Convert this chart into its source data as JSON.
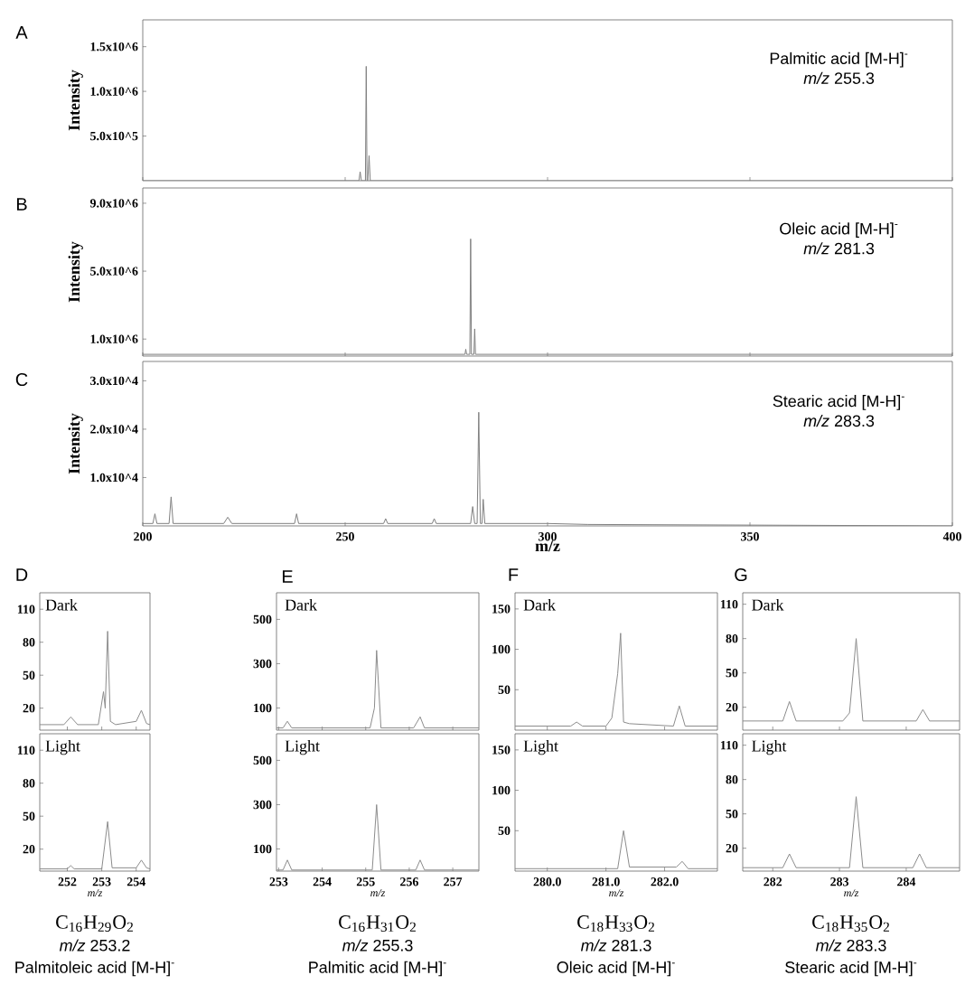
{
  "chart_data": [
    {
      "type": "line",
      "title": "A",
      "ylabel": "Intensity",
      "color": "#7f7f7f",
      "xlim": [
        200,
        400
      ],
      "ylim": [
        0,
        1800000
      ],
      "xticks": [
        200,
        250,
        300,
        350,
        400
      ],
      "tick_labels": "y",
      "yticks": [
        {
          "value": 500000,
          "label": "5.0x10^5"
        },
        {
          "value": 1000000,
          "label": "1.0x10^6"
        },
        {
          "value": 1500000,
          "label": "1.5x10^6"
        }
      ],
      "annotations": [
        "Palmitic acid [M-H]$^{-}$",
        "*m/z* 255.3"
      ],
      "x": [
        200,
        230,
        253.4,
        253.7,
        254,
        255,
        255.2,
        255.4,
        255.6,
        255.9,
        256.2,
        256.5,
        257,
        300,
        400
      ],
      "values": [
        0,
        0,
        0,
        100000,
        0,
        0,
        1280000,
        0,
        0,
        280000,
        0,
        0,
        0,
        0,
        0
      ]
    },
    {
      "type": "line",
      "title": "B",
      "ylabel": "Intensity",
      "color": "#7f7f7f",
      "xlim": [
        200,
        400
      ],
      "ylim": [
        0,
        9900000
      ],
      "xticks": [
        200,
        250,
        300,
        350,
        400
      ],
      "tick_labels": "y",
      "yticks": [
        {
          "value": 1000000,
          "label": "1.0x10^6"
        },
        {
          "value": 5000000,
          "label": "5.0x10^6"
        },
        {
          "value": 9000000,
          "label": "9.0x10^6"
        }
      ],
      "annotations": [
        "Oleic acid [M-H]$^{-}$",
        "*m/z* 281.3"
      ],
      "x": [
        200,
        240,
        279.6,
        279.8,
        280,
        280.8,
        281,
        281.2,
        281.8,
        282,
        282.2,
        300,
        400
      ],
      "values": [
        100000,
        100000,
        100000,
        400000,
        100000,
        100000,
        6900000,
        100000,
        100000,
        1600000,
        100000,
        100000,
        100000
      ]
    },
    {
      "type": "line",
      "title": "C",
      "ylabel": "Intensity",
      "xlabel": "m/z",
      "color": "#7f7f7f",
      "xlim": [
        200,
        400
      ],
      "ylim": [
        0,
        34000
      ],
      "xticks": [
        200,
        250,
        300,
        350,
        400
      ],
      "yticks": [
        {
          "value": 10000,
          "label": "1.0x10^4"
        },
        {
          "value": 20000,
          "label": "2.0x10^4"
        },
        {
          "value": 30000,
          "label": "3.0x10^4"
        }
      ],
      "annotations": [
        "Stearic acid [M-H]$^{-}$",
        "*m/z* 283.3"
      ],
      "x": [
        200,
        202.5,
        203,
        203.5,
        206.5,
        207,
        207.5,
        220,
        221,
        222,
        237.5,
        238,
        238.5,
        259.5,
        260,
        260.5,
        271.5,
        272,
        272.5,
        281,
        281.5,
        282,
        282.6,
        283,
        283.4,
        283.8,
        284.1,
        284.5,
        300,
        310,
        400
      ],
      "values": [
        500,
        500,
        2500,
        500,
        500,
        6000,
        500,
        500,
        1800,
        500,
        500,
        2500,
        500,
        500,
        1500,
        500,
        500,
        1500,
        500,
        500,
        4000,
        500,
        500,
        23500,
        500,
        500,
        5500,
        500,
        500,
        300,
        0
      ]
    },
    {
      "type": "line",
      "title": "D",
      "color": "#8c8c8c",
      "xlim": [
        251.2,
        254.4
      ],
      "ylim": [
        0,
        125
      ],
      "xticks": [
        252,
        253,
        254
      ],
      "yticks": [
        20,
        50,
        80,
        110
      ],
      "tick_labels": "y",
      "annotations": [
        "Dark"
      ],
      "x": [
        251.2,
        251.9,
        252.1,
        252.3,
        252.9,
        253.05,
        253.1,
        253.17,
        253.25,
        253.4,
        254.0,
        254.15,
        254.3,
        254.4
      ],
      "values": [
        5,
        5,
        12,
        5,
        5,
        35,
        20,
        90,
        8,
        5,
        8,
        18,
        6,
        5
      ]
    },
    {
      "type": "line",
      "xlabel": "m/z",
      "color": "#8c8c8c",
      "xlim": [
        251.2,
        254.4
      ],
      "ylim": [
        0,
        125
      ],
      "xticks": [
        252,
        253,
        254
      ],
      "yticks": [
        20,
        50,
        80,
        110
      ],
      "annotations": [
        "Light",
        "C$_{16}$H$_{29}$O$_{2}$",
        "*m/z* 253.2",
        "Palmitoleic acid [M-H]$^{-}$"
      ],
      "x": [
        251.2,
        252.0,
        252.1,
        252.2,
        253.0,
        253.17,
        253.3,
        254.0,
        254.15,
        254.3,
        254.4
      ],
      "values": [
        2,
        2,
        5,
        2,
        2,
        45,
        3,
        3,
        10,
        3,
        2
      ]
    },
    {
      "type": "line",
      "title": "E",
      "color": "#8c8c8c",
      "xlim": [
        252.95,
        257.6
      ],
      "ylim": [
        0,
        620
      ],
      "xticks": [
        253,
        254,
        255,
        256,
        257
      ],
      "yticks": [
        100,
        300,
        500
      ],
      "tick_labels": "y",
      "annotations": [
        "Dark"
      ],
      "x": [
        252.95,
        253.1,
        253.2,
        253.3,
        255.1,
        255.2,
        255.25,
        255.35,
        256.1,
        256.25,
        256.35,
        257.6
      ],
      "values": [
        10,
        10,
        40,
        10,
        10,
        100,
        360,
        10,
        10,
        60,
        10,
        10
      ]
    },
    {
      "type": "line",
      "xlabel": "m/z",
      "color": "#8c8c8c",
      "xlim": [
        252.95,
        257.6
      ],
      "ylim": [
        0,
        620
      ],
      "xticks": [
        253,
        254,
        255,
        256,
        257
      ],
      "yticks": [
        100,
        300,
        500
      ],
      "annotations": [
        "Light",
        "C$_{16}$H$_{31}$O$_{2}$",
        "*m/z* 255.3",
        "Palmitic acid [M-H]$^{-}$"
      ],
      "x": [
        252.95,
        253.1,
        253.2,
        253.3,
        255.15,
        255.25,
        255.35,
        256.15,
        256.25,
        256.35,
        257.6
      ],
      "values": [
        5,
        5,
        50,
        5,
        5,
        300,
        5,
        5,
        50,
        5,
        5
      ]
    },
    {
      "type": "line",
      "title": "F",
      "color": "#8c8c8c",
      "xlim": [
        279.45,
        282.9
      ],
      "ylim": [
        0,
        170
      ],
      "xticks": [
        280,
        281,
        282
      ],
      "yticks": [
        50,
        100,
        150
      ],
      "tick_labels": "y",
      "annotations": [
        "Dark"
      ],
      "x": [
        279.45,
        280.4,
        280.5,
        280.6,
        281.0,
        281.1,
        281.2,
        281.25,
        281.3,
        281.4,
        282.15,
        282.25,
        282.35,
        282.9
      ],
      "values": [
        5,
        5,
        10,
        5,
        5,
        15,
        70,
        120,
        10,
        8,
        5,
        30,
        5,
        5
      ]
    },
    {
      "type": "line",
      "xlabel": "m/z",
      "color": "#8c8c8c",
      "xlim": [
        279.45,
        282.9
      ],
      "ylim": [
        0,
        170
      ],
      "xticks": [
        {
          "value": 280,
          "label": "280.0"
        },
        {
          "value": 281,
          "label": "281.0"
        },
        {
          "value": 282,
          "label": "282.0"
        }
      ],
      "yticks": [
        50,
        100,
        150
      ],
      "annotations": [
        "Light",
        "C$_{18}$H$_{33}$O$_{2}$",
        "*m/z* 281.3",
        "Oleic acid [M-H]$^{-}$"
      ],
      "x": [
        279.45,
        281.2,
        281.3,
        281.4,
        282.2,
        282.3,
        282.4,
        282.9
      ],
      "values": [
        3,
        3,
        50,
        5,
        5,
        12,
        3,
        3
      ]
    },
    {
      "type": "line",
      "title": "G",
      "color": "#8c8c8c",
      "xlim": [
        281.55,
        284.8
      ],
      "ylim": [
        0,
        120
      ],
      "xticks": [
        282,
        283,
        284
      ],
      "yticks": [
        20,
        50,
        80,
        110
      ],
      "tick_labels": "y",
      "annotations": [
        "Dark"
      ],
      "x": [
        281.55,
        282.15,
        282.25,
        282.35,
        283.05,
        283.15,
        283.25,
        283.35,
        284.15,
        284.25,
        284.35,
        284.8
      ],
      "values": [
        8,
        8,
        25,
        8,
        8,
        15,
        80,
        8,
        8,
        18,
        8,
        8
      ]
    },
    {
      "type": "line",
      "xlabel": "m/z",
      "color": "#8c8c8c",
      "xlim": [
        281.55,
        284.8
      ],
      "ylim": [
        0,
        120
      ],
      "xticks": [
        282,
        283,
        284
      ],
      "yticks": [
        20,
        50,
        80,
        110
      ],
      "annotations": [
        "Light",
        "C$_{18}$H$_{35}$O$_{2}$",
        "*m/z* 283.3",
        "Stearic acid [M-H]$^{-}$"
      ],
      "x": [
        281.55,
        282.15,
        282.25,
        282.35,
        283.15,
        283.25,
        283.35,
        284.1,
        284.2,
        284.3,
        284.8
      ],
      "values": [
        3,
        3,
        15,
        3,
        3,
        65,
        3,
        3,
        15,
        3,
        3
      ]
    }
  ]
}
